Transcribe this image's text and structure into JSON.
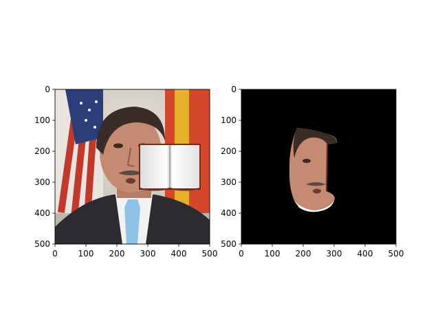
{
  "chart_data": [
    {
      "type": "image",
      "panel": "original image with occluding book overlay",
      "xlim": [
        0,
        500
      ],
      "ylim": [
        500,
        0
      ],
      "xticks": [
        0,
        100,
        200,
        300,
        400,
        500
      ],
      "yticks": [
        0,
        100,
        200,
        300,
        400,
        500
      ],
      "xtick_labels": [
        "0",
        "100",
        "200",
        "300",
        "400",
        "500"
      ],
      "ytick_labels": [
        "0",
        "100",
        "200",
        "300",
        "400",
        "500"
      ],
      "grid": false,
      "title": "",
      "xlabel": "",
      "ylabel": ""
    },
    {
      "type": "image",
      "panel": "face segmentation mask (black background)",
      "xlim": [
        0,
        500
      ],
      "ylim": [
        500,
        0
      ],
      "xticks": [
        0,
        100,
        200,
        300,
        400,
        500
      ],
      "yticks": [
        0,
        100,
        200,
        300,
        400,
        500
      ],
      "xtick_labels": [
        "0",
        "100",
        "200",
        "300",
        "400",
        "500"
      ],
      "ytick_labels": [
        "0",
        "100",
        "200",
        "300",
        "400",
        "500"
      ],
      "grid": false,
      "title": "",
      "xlabel": "",
      "ylabel": ""
    }
  ],
  "colors": {
    "mask_background": "#000000",
    "skin": "#c48a72",
    "suit": "#2b2b30",
    "shirt": "#f2f2f2",
    "tie": "#8ec2e6",
    "hair": "#3a2c26",
    "flag_red_us": "#c0392b",
    "flag_blue_us": "#2c3e7a",
    "flag_red_es": "#d4472a",
    "flag_yellow_es": "#e6b02d",
    "book_page": "#f8f8f8",
    "book_border": "#6b2e20"
  }
}
